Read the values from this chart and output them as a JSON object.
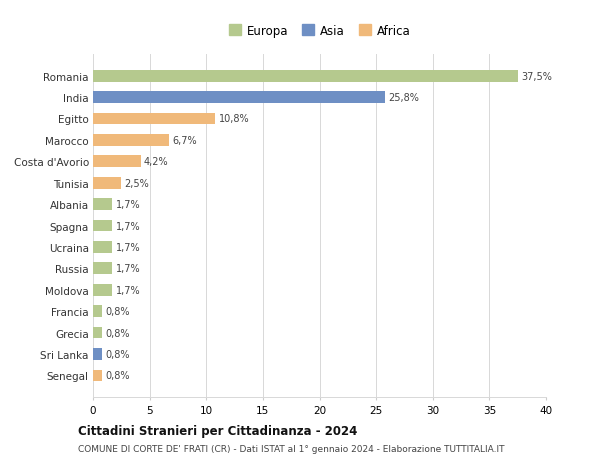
{
  "countries": [
    "Romania",
    "India",
    "Egitto",
    "Marocco",
    "Costa d'Avorio",
    "Tunisia",
    "Albania",
    "Spagna",
    "Ucraina",
    "Russia",
    "Moldova",
    "Francia",
    "Grecia",
    "Sri Lanka",
    "Senegal"
  ],
  "values": [
    37.5,
    25.8,
    10.8,
    6.7,
    4.2,
    2.5,
    1.7,
    1.7,
    1.7,
    1.7,
    1.7,
    0.8,
    0.8,
    0.8,
    0.8
  ],
  "labels": [
    "37,5%",
    "25,8%",
    "10,8%",
    "6,7%",
    "4,2%",
    "2,5%",
    "1,7%",
    "1,7%",
    "1,7%",
    "1,7%",
    "1,7%",
    "0,8%",
    "0,8%",
    "0,8%",
    "0,8%"
  ],
  "colors": [
    "#b5c98e",
    "#6e8fc4",
    "#f0b97a",
    "#f0b97a",
    "#f0b97a",
    "#f0b97a",
    "#b5c98e",
    "#b5c98e",
    "#b5c98e",
    "#b5c98e",
    "#b5c98e",
    "#b5c98e",
    "#b5c98e",
    "#6e8fc4",
    "#f0b97a"
  ],
  "legend_labels": [
    "Europa",
    "Asia",
    "Africa"
  ],
  "legend_colors": [
    "#b5c98e",
    "#6e8fc4",
    "#f0b97a"
  ],
  "title": "Cittadini Stranieri per Cittadinanza - 2024",
  "subtitle": "COMUNE DI CORTE DE' FRATI (CR) - Dati ISTAT al 1° gennaio 2024 - Elaborazione TUTTITALIA.IT",
  "xlim": [
    0,
    40
  ],
  "xticks": [
    0,
    5,
    10,
    15,
    20,
    25,
    30,
    35,
    40
  ],
  "bg_color": "#ffffff",
  "grid_color": "#d8d8d8",
  "bar_height": 0.55
}
